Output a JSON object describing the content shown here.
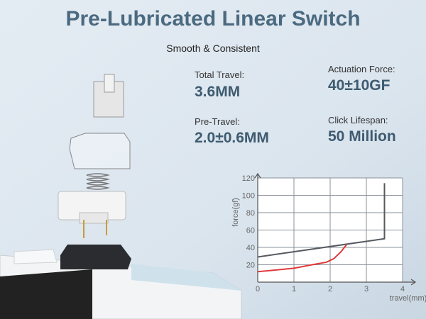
{
  "header": {
    "title": "Pre-Lubricated Linear Switch",
    "subtitle": "Smooth & Consistent"
  },
  "specs": [
    {
      "label": "Total Travel:",
      "value": "3.6MM"
    },
    {
      "label": "Actuation Force:",
      "value": "40±10GF"
    },
    {
      "label": "Pre-Travel:",
      "value": "2.0±0.6MM"
    },
    {
      "label": "Click Lifespan:",
      "value": "50 Million"
    }
  ],
  "chart_data": {
    "type": "line",
    "xlabel": "travel(mm)",
    "ylabel": "force(gf)",
    "xlim": [
      0,
      4
    ],
    "ylim": [
      0,
      120
    ],
    "xticks": [
      0,
      1,
      2,
      3,
      4
    ],
    "yticks": [
      20,
      40,
      60,
      80,
      100,
      120
    ],
    "grid": true,
    "series": [
      {
        "color": "#555a60",
        "x": [
          0,
          3.5,
          3.5
        ],
        "values": [
          29,
          50,
          114
        ]
      },
      {
        "color": "#e03a3a",
        "x": [
          0,
          0.5,
          1,
          1.5,
          1.9,
          2.1,
          2.3,
          2.45
        ],
        "values": [
          12,
          14,
          16,
          20,
          23,
          27,
          35,
          43
        ]
      }
    ]
  }
}
